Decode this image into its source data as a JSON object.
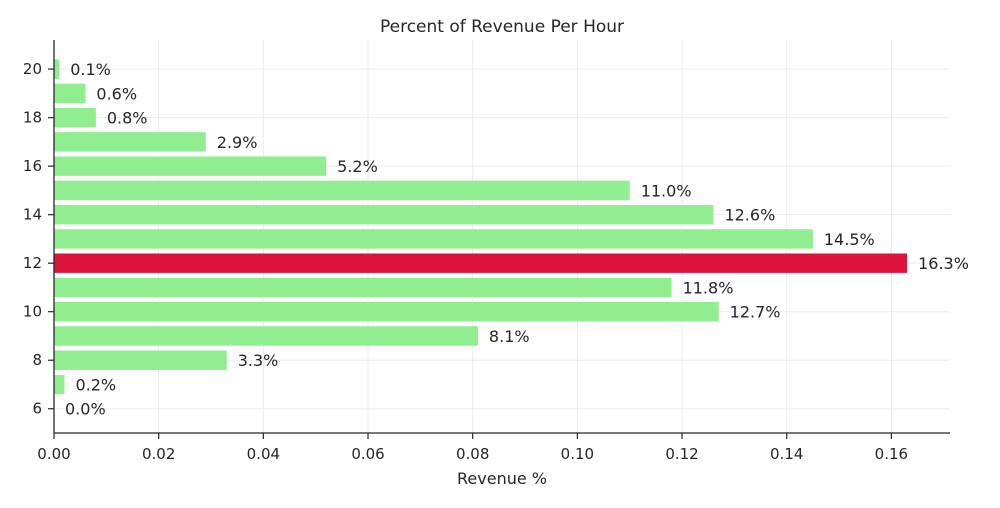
{
  "chart_data": {
    "type": "bar",
    "orientation": "horizontal",
    "title": "Percent of Revenue Per Hour",
    "xlabel": "Revenue %",
    "ylabel": "",
    "categories": [
      6,
      7,
      8,
      9,
      10,
      11,
      12,
      13,
      14,
      15,
      16,
      17,
      18,
      19,
      20
    ],
    "values": [
      0.0,
      0.002,
      0.033,
      0.081,
      0.127,
      0.118,
      0.163,
      0.145,
      0.126,
      0.11,
      0.052,
      0.029,
      0.008,
      0.006,
      0.001
    ],
    "data_labels": [
      "0.0%",
      "0.2%",
      "3.3%",
      "8.1%",
      "12.7%",
      "11.8%",
      "16.3%",
      "14.5%",
      "12.6%",
      "11.0%",
      "5.2%",
      "2.9%",
      "0.8%",
      "0.6%",
      "0.1%"
    ],
    "xlim": [
      0,
      0.1712
    ],
    "xticks": [
      0.0,
      0.02,
      0.04,
      0.06,
      0.08,
      0.1,
      0.12,
      0.14,
      0.16
    ],
    "xtick_labels": [
      "0.00",
      "0.02",
      "0.04",
      "0.06",
      "0.08",
      "0.10",
      "0.12",
      "0.14",
      "0.16"
    ],
    "ylim": [
      5,
      21.2
    ],
    "yticks": [
      6,
      8,
      10,
      12,
      14,
      16,
      18,
      20
    ],
    "ytick_labels": [
      "6",
      "8",
      "10",
      "12",
      "14",
      "16",
      "18",
      "20"
    ],
    "highlight_category": 12,
    "grid": true,
    "colors": {
      "bar": "#90ee90",
      "highlight": "#dc143c",
      "grid": "#ebebeb",
      "axis": "#262626"
    }
  }
}
